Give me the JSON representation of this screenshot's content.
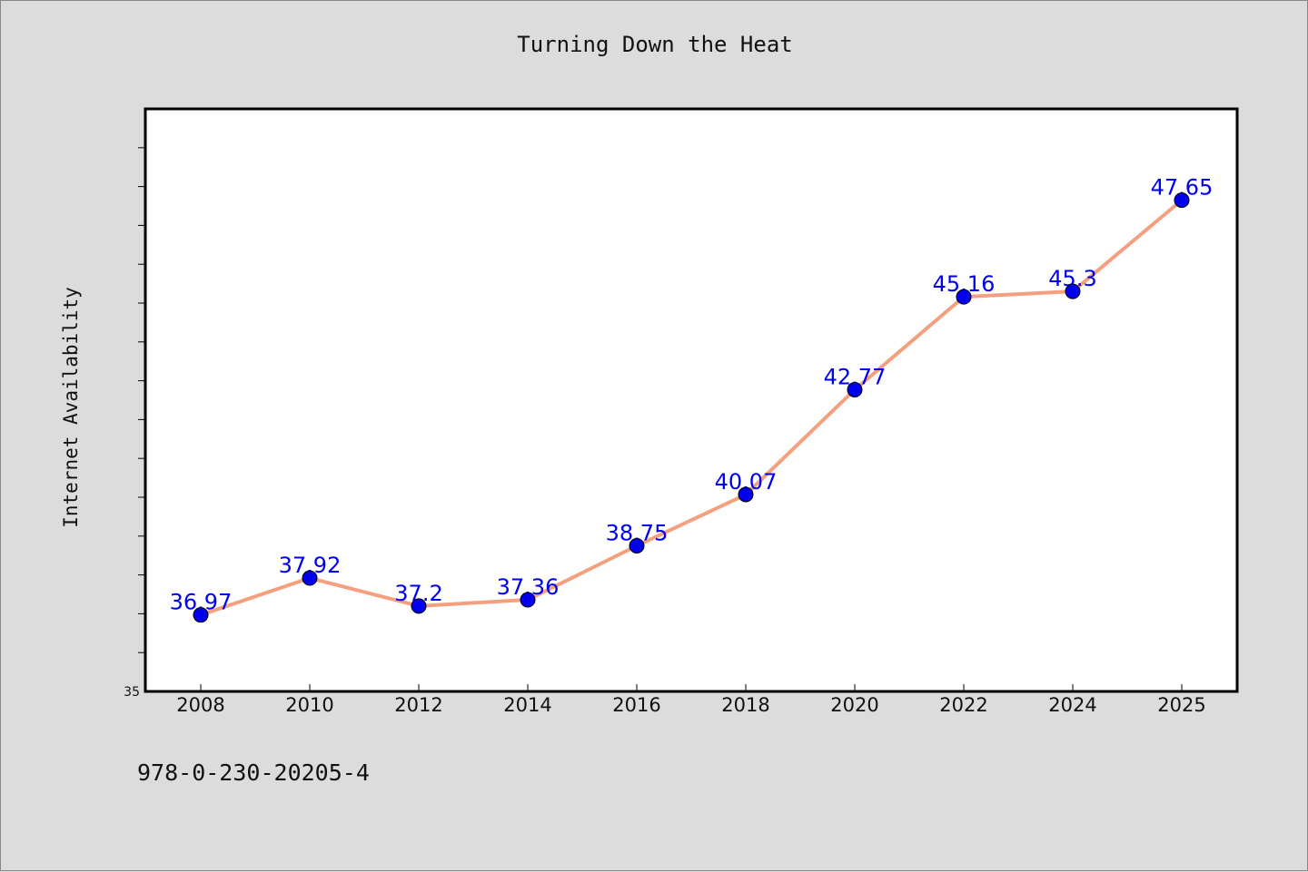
{
  "chart_data": {
    "type": "line",
    "title": "Turning Down the Heat",
    "xlabel": "",
    "ylabel": "Internet Availability",
    "categories": [
      "2008",
      "2010",
      "2012",
      "2014",
      "2016",
      "2018",
      "2020",
      "2022",
      "2024",
      "2025"
    ],
    "series": [
      {
        "values": [
          36.97,
          37.92,
          37.2,
          37.36,
          38.75,
          40.07,
          42.77,
          45.16,
          45.3,
          47.65
        ],
        "labels": [
          "36.97",
          "37.92",
          "37.2",
          "37.36",
          "38.75",
          "40.07",
          "42.77",
          "45.16",
          "45.3",
          "47.65"
        ]
      }
    ],
    "ylim": [
      35,
      50
    ],
    "yticks_labeled": [
      "35"
    ],
    "grid": false,
    "legend": "none",
    "colors": {
      "line": "#f4a07e",
      "marker": "#0000ee",
      "data_label": "#0000ee",
      "plot_background": "#ffffff",
      "figure_background": "#dcdcdc"
    }
  },
  "footer": {
    "code": "978-0-230-20205-4"
  }
}
